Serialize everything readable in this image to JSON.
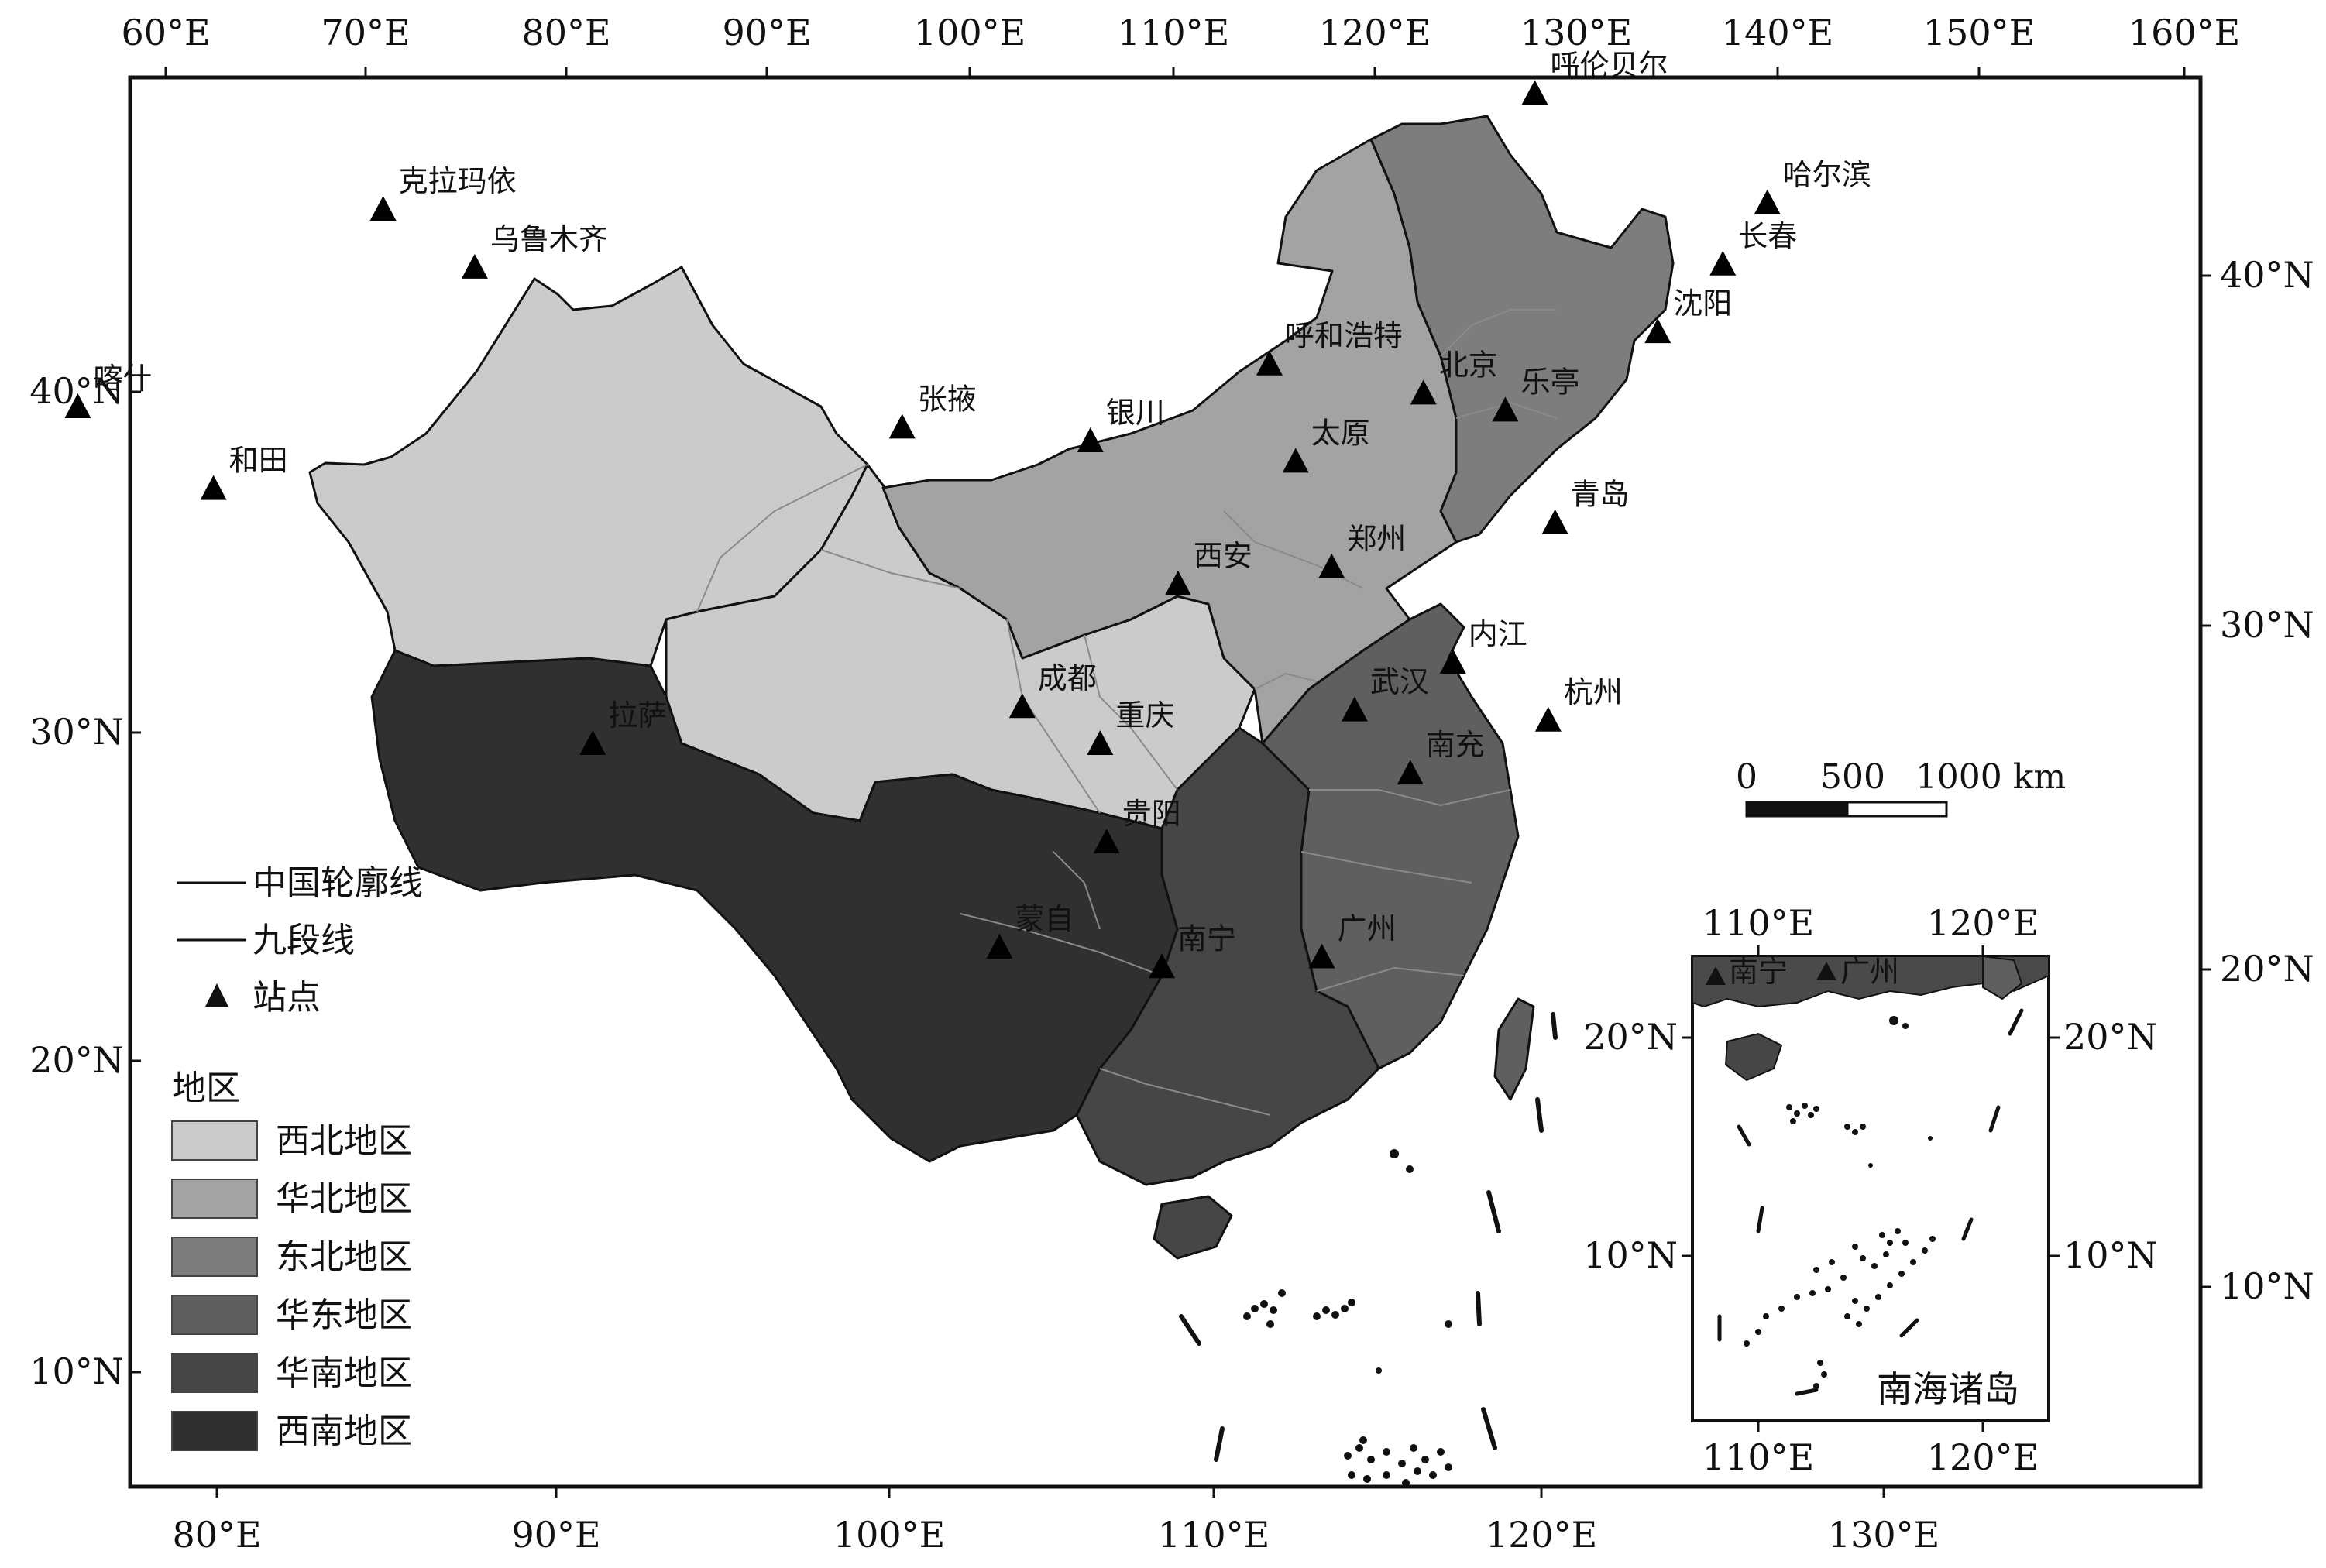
{
  "colors": {
    "northwest": "#cbcbcb",
    "north": "#a3a3a3",
    "northeast": "#7d7d7d",
    "east": "#5f5f5f",
    "south": "#464646",
    "southwest": "#303030",
    "outline": "#111111",
    "province_line": "#8a8a8a"
  },
  "top_axis": [
    "60°E",
    "70°E",
    "80°E",
    "90°E",
    "100°E",
    "110°E",
    "120°E",
    "130°E",
    "140°E",
    "150°E",
    "160°E"
  ],
  "bottom_axis": [
    "80°E",
    "90°E",
    "100°E",
    "110°E",
    "120°E",
    "130°E"
  ],
  "left_axis": [
    "40°N",
    "30°N",
    "20°N",
    "10°N"
  ],
  "right_axis": [
    "40°N",
    "30°N",
    "20°N",
    "10°N"
  ],
  "stations": [
    {
      "name": "克拉玛依",
      "lon": 84.9,
      "lat": 45.6
    },
    {
      "name": "乌鲁木齐",
      "lon": 87.6,
      "lat": 43.8
    },
    {
      "name": "喀什",
      "lon": 75.9,
      "lat": 39.5
    },
    {
      "name": "和田",
      "lon": 79.9,
      "lat": 37.1
    },
    {
      "name": "张掖",
      "lon": 100.4,
      "lat": 38.9
    },
    {
      "name": "银川",
      "lon": 106.2,
      "lat": 38.5
    },
    {
      "name": "呼和浩特",
      "lon": 111.7,
      "lat": 40.8
    },
    {
      "name": "北京",
      "lon": 116.4,
      "lat": 39.9
    },
    {
      "name": "乐亭",
      "lon": 118.9,
      "lat": 39.4
    },
    {
      "name": "太原",
      "lon": 112.5,
      "lat": 37.9
    },
    {
      "name": "呼伦贝尔",
      "lon": 119.8,
      "lat": 49.2
    },
    {
      "name": "哈尔滨",
      "lon": 126.6,
      "lat": 45.8
    },
    {
      "name": "长春",
      "lon": 125.3,
      "lat": 43.9
    },
    {
      "name": "沈阳",
      "lon": 123.4,
      "lat": 41.8
    },
    {
      "name": "青岛",
      "lon": 120.4,
      "lat": 36.1
    },
    {
      "name": "郑州",
      "lon": 113.6,
      "lat": 34.8
    },
    {
      "name": "西安",
      "lon": 108.9,
      "lat": 34.3
    },
    {
      "name": "内江",
      "lon": 117.3,
      "lat": 32.0
    },
    {
      "name": "杭州",
      "lon": 120.2,
      "lat": 30.3
    },
    {
      "name": "武汉",
      "lon": 114.3,
      "lat": 30.6
    },
    {
      "name": "南充",
      "lon": 116.0,
      "lat": 28.7
    },
    {
      "name": "拉萨",
      "lon": 91.1,
      "lat": 29.6
    },
    {
      "name": "成都",
      "lon": 104.1,
      "lat": 30.7
    },
    {
      "name": "重庆",
      "lon": 106.5,
      "lat": 29.6
    },
    {
      "name": "贵阳",
      "lon": 106.7,
      "lat": 26.6
    },
    {
      "name": "蒙自",
      "lon": 103.4,
      "lat": 23.4
    },
    {
      "name": "南宁",
      "lon": 108.4,
      "lat": 22.8
    },
    {
      "name": "广州",
      "lon": 113.3,
      "lat": 23.1
    }
  ],
  "legend": {
    "outline_label": "中国轮廓线",
    "nine_dash_label": "九段线",
    "station_label": "站点",
    "region_title": "地区",
    "regions": [
      {
        "key": "northwest",
        "label": "西北地区"
      },
      {
        "key": "north",
        "label": "华北地区"
      },
      {
        "key": "northeast",
        "label": "东北地区"
      },
      {
        "key": "east",
        "label": "华东地区"
      },
      {
        "key": "south",
        "label": "华南地区"
      },
      {
        "key": "southwest",
        "label": "西南地区"
      }
    ]
  },
  "scale_bar": {
    "labels": [
      "0",
      "500",
      "1000 km"
    ]
  },
  "inset": {
    "title": "南海诸岛",
    "top_axis": [
      "110°E",
      "120°E"
    ],
    "bottom_axis": [
      "110°E",
      "120°E"
    ],
    "left_axis": [
      "20°N",
      "10°N"
    ],
    "right_axis": [
      "20°N",
      "10°N"
    ],
    "stations": [
      "南宁",
      "广州"
    ]
  }
}
